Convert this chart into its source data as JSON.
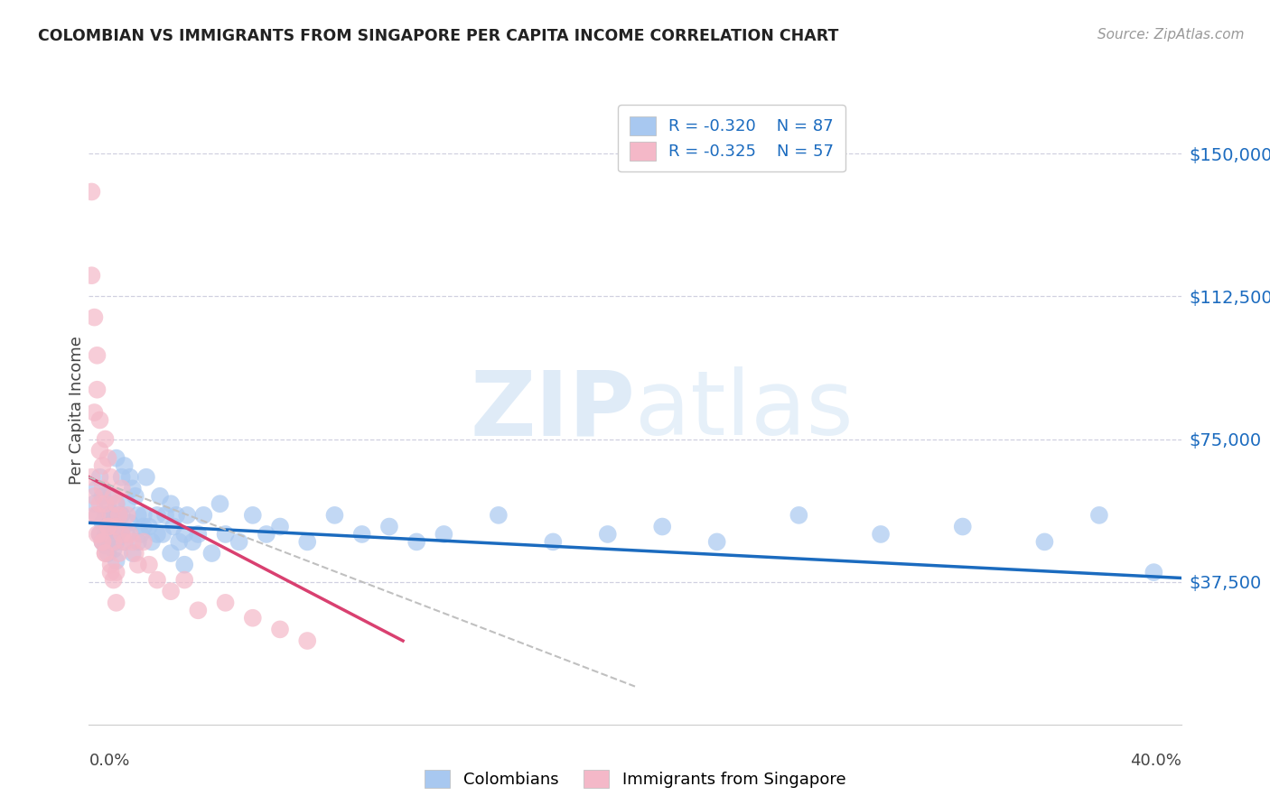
{
  "title": "COLOMBIAN VS IMMIGRANTS FROM SINGAPORE PER CAPITA INCOME CORRELATION CHART",
  "source": "Source: ZipAtlas.com",
  "ylabel": "Per Capita Income",
  "ytick_labels": [
    "$37,500",
    "$75,000",
    "$112,500",
    "$150,000"
  ],
  "ytick_values": [
    37500,
    75000,
    112500,
    150000
  ],
  "watermark_zip": "ZIP",
  "watermark_atlas": "atlas",
  "legend_blue_label": "Colombians",
  "legend_pink_label": "Immigrants from Singapore",
  "legend_r_blue": "R = -0.320",
  "legend_n_blue": "N = 87",
  "legend_r_pink": "R = -0.325",
  "legend_n_pink": "N = 57",
  "blue_color": "#a8c8f0",
  "blue_line_color": "#1b6bbf",
  "pink_color": "#f4b8c8",
  "pink_line_color": "#d94070",
  "dashed_line_color": "#c0c0c0",
  "grid_color": "#d0d0e0",
  "background_color": "#ffffff",
  "xmin": 0.0,
  "xmax": 0.4,
  "ymin": 0,
  "ymax": 165000,
  "blue_scatter_x": [
    0.002,
    0.003,
    0.003,
    0.004,
    0.004,
    0.005,
    0.005,
    0.005,
    0.006,
    0.006,
    0.006,
    0.007,
    0.007,
    0.007,
    0.008,
    0.008,
    0.008,
    0.009,
    0.009,
    0.01,
    0.01,
    0.01,
    0.011,
    0.011,
    0.012,
    0.012,
    0.013,
    0.013,
    0.014,
    0.015,
    0.015,
    0.016,
    0.017,
    0.018,
    0.019,
    0.02,
    0.021,
    0.022,
    0.023,
    0.025,
    0.026,
    0.027,
    0.028,
    0.03,
    0.031,
    0.032,
    0.033,
    0.035,
    0.036,
    0.038,
    0.04,
    0.042,
    0.045,
    0.048,
    0.05,
    0.055,
    0.06,
    0.065,
    0.07,
    0.08,
    0.09,
    0.1,
    0.11,
    0.12,
    0.13,
    0.15,
    0.17,
    0.19,
    0.21,
    0.23,
    0.26,
    0.29,
    0.32,
    0.35,
    0.37,
    0.39,
    0.006,
    0.008,
    0.01,
    0.012,
    0.014,
    0.016,
    0.018,
    0.02,
    0.025,
    0.03,
    0.035
  ],
  "blue_scatter_y": [
    58000,
    55000,
    62000,
    50000,
    65000,
    48000,
    60000,
    53000,
    50000,
    55000,
    47000,
    52000,
    57000,
    45000,
    60000,
    48000,
    55000,
    46000,
    54000,
    43000,
    70000,
    58000,
    50000,
    55000,
    65000,
    50000,
    68000,
    48000,
    58000,
    53000,
    65000,
    62000,
    60000,
    55000,
    50000,
    55000,
    65000,
    52000,
    48000,
    55000,
    60000,
    50000,
    55000,
    58000,
    52000,
    55000,
    48000,
    50000,
    55000,
    48000,
    50000,
    55000,
    45000,
    58000,
    50000,
    48000,
    55000,
    50000,
    52000,
    48000,
    55000,
    50000,
    52000,
    48000,
    50000,
    55000,
    48000,
    50000,
    52000,
    48000,
    55000,
    50000,
    52000,
    48000,
    55000,
    40000,
    55000,
    52000,
    48000,
    55000,
    50000,
    45000,
    48000,
    52000,
    50000,
    45000,
    42000
  ],
  "pink_scatter_x": [
    0.001,
    0.001,
    0.002,
    0.002,
    0.002,
    0.003,
    0.003,
    0.003,
    0.004,
    0.004,
    0.004,
    0.005,
    0.005,
    0.005,
    0.006,
    0.006,
    0.006,
    0.007,
    0.007,
    0.008,
    0.008,
    0.008,
    0.009,
    0.009,
    0.01,
    0.01,
    0.01,
    0.011,
    0.011,
    0.012,
    0.012,
    0.013,
    0.014,
    0.015,
    0.016,
    0.017,
    0.018,
    0.02,
    0.022,
    0.025,
    0.03,
    0.035,
    0.04,
    0.05,
    0.06,
    0.07,
    0.08,
    0.001,
    0.002,
    0.003,
    0.004,
    0.005,
    0.006,
    0.007,
    0.008,
    0.009,
    0.01
  ],
  "pink_scatter_y": [
    140000,
    118000,
    82000,
    107000,
    60000,
    97000,
    88000,
    55000,
    80000,
    72000,
    50000,
    68000,
    62000,
    48000,
    75000,
    58000,
    45000,
    70000,
    52000,
    65000,
    55000,
    42000,
    60000,
    48000,
    58000,
    52000,
    40000,
    55000,
    45000,
    62000,
    50000,
    48000,
    55000,
    50000,
    48000,
    45000,
    42000,
    48000,
    42000,
    38000,
    35000,
    38000,
    30000,
    32000,
    28000,
    25000,
    22000,
    65000,
    55000,
    50000,
    58000,
    48000,
    45000,
    52000,
    40000,
    38000,
    32000
  ],
  "blue_trend_x": [
    0.0,
    0.4
  ],
  "blue_trend_y": [
    53000,
    38500
  ],
  "pink_trend_x": [
    0.0,
    0.115
  ],
  "pink_trend_y": [
    65000,
    22000
  ],
  "dashed_trend_x": [
    0.0,
    0.2
  ],
  "dashed_trend_y": [
    65000,
    10000
  ]
}
